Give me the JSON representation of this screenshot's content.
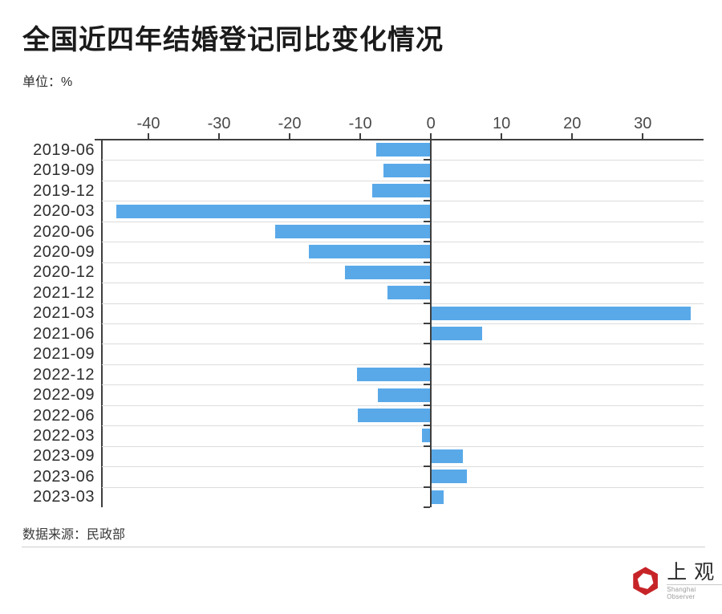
{
  "title": "全国近四年结婚登记同比变化情况",
  "unit_label": "单位：%",
  "source": "数据来源：民政部",
  "logo": {
    "name": "上观",
    "subname": "Shanghai Observer",
    "color": "#c72428"
  },
  "colors": {
    "bar": "#59a9e9",
    "axis": "#3f3f3f",
    "grid": "#dcdcdc"
  },
  "chart_data": {
    "type": "bar",
    "orientation": "horizontal",
    "title": "全国近四年结婚登记同比变化情况",
    "unit": "%",
    "categories": [
      "2019-06",
      "2019-09",
      "2019-12",
      "2020-03",
      "2020-06",
      "2020-09",
      "2020-12",
      "2021-12",
      "2021-03",
      "2021-06",
      "2021-09",
      "2022-12",
      "2022-09",
      "2022-06",
      "2022-03",
      "2023-09",
      "2023-06",
      "2023-03"
    ],
    "values": [
      -7.7,
      -6.7,
      -8.3,
      -44.5,
      -22.0,
      -17.3,
      -12.2,
      -6.1,
      36.8,
      7.3,
      0,
      -10.5,
      -7.5,
      -10.4,
      -1.3,
      4.5,
      5.1,
      1.8
    ],
    "x_ticks": [
      -40,
      -30,
      -20,
      -10,
      0,
      10,
      20,
      30
    ],
    "xlim": [
      -46.7,
      38.6
    ],
    "grid": true,
    "legend": false
  }
}
